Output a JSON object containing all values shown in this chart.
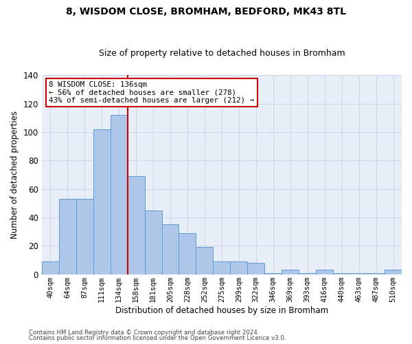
{
  "title1": "8, WISDOM CLOSE, BROMHAM, BEDFORD, MK43 8TL",
  "title2": "Size of property relative to detached houses in Bromham",
  "xlabel": "Distribution of detached houses by size in Bromham",
  "ylabel": "Number of detached properties",
  "bar_labels": [
    "40sqm",
    "64sqm",
    "87sqm",
    "111sqm",
    "134sqm",
    "158sqm",
    "181sqm",
    "205sqm",
    "228sqm",
    "252sqm",
    "275sqm",
    "299sqm",
    "322sqm",
    "346sqm",
    "369sqm",
    "393sqm",
    "416sqm",
    "440sqm",
    "463sqm",
    "487sqm",
    "510sqm"
  ],
  "bar_values": [
    9,
    53,
    53,
    102,
    112,
    69,
    45,
    35,
    29,
    19,
    9,
    9,
    8,
    1,
    3,
    1,
    3,
    1,
    1,
    1,
    3
  ],
  "bar_color": "#aec6e8",
  "bar_edge_color": "#5b9bd5",
  "vline_color": "#cc0000",
  "annotation_text": "8 WISDOM CLOSE: 136sqm\n← 56% of detached houses are smaller (278)\n43% of semi-detached houses are larger (212) →",
  "annotation_box_color": "#ffffff",
  "annotation_box_edge": "#cc0000",
  "ylim": [
    0,
    140
  ],
  "yticks": [
    0,
    20,
    40,
    60,
    80,
    100,
    120,
    140
  ],
  "grid_color": "#d0d8e8",
  "bg_color": "#e8eef8",
  "footer1": "Contains HM Land Registry data © Crown copyright and database right 2024.",
  "footer2": "Contains public sector information licensed under the Open Government Licence v3.0."
}
